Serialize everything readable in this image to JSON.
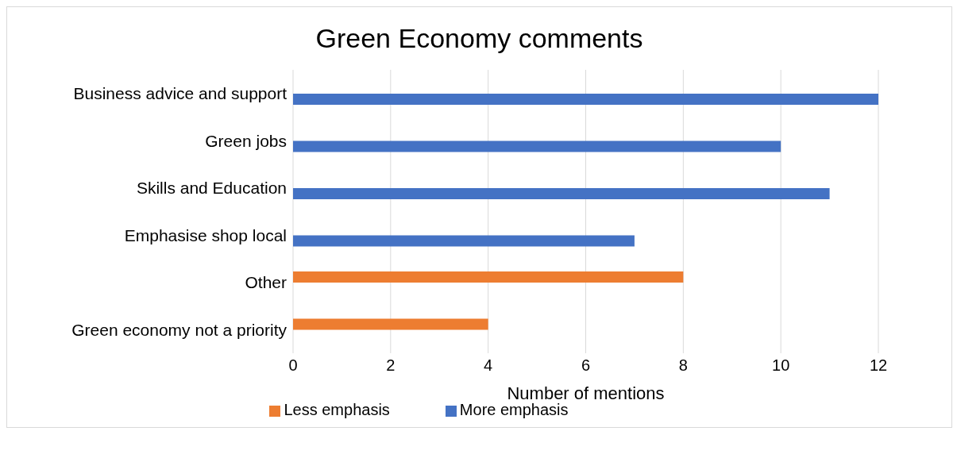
{
  "chart_data": {
    "type": "bar",
    "orientation": "horizontal",
    "title": "Green Economy comments",
    "xlabel": "Number of mentions",
    "categories": [
      "Business advice and support",
      "Green jobs",
      "Skills and Education",
      "Emphasise shop local",
      "Other",
      "Green economy not a priority"
    ],
    "series": [
      {
        "name": "Less emphasis",
        "color": "#ed7d31",
        "values": [
          null,
          null,
          null,
          null,
          8,
          4
        ]
      },
      {
        "name": "More emphasis",
        "color": "#4472c4",
        "values": [
          12,
          10,
          11,
          7,
          null,
          null
        ]
      }
    ],
    "xlim": [
      0,
      12
    ],
    "xticks": [
      0,
      2,
      4,
      6,
      8,
      10,
      12
    ],
    "grid": "x",
    "legend": "bottom"
  }
}
